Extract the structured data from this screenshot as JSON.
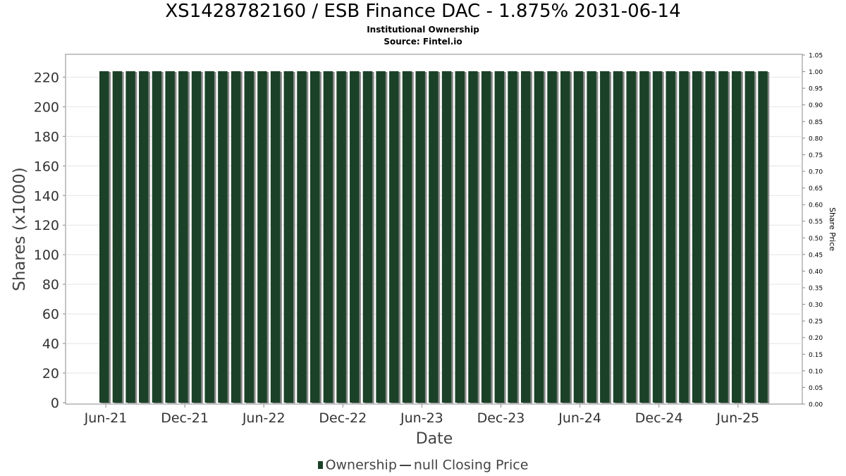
{
  "chart_data": {
    "type": "bar",
    "title": "XS1428782160 / ESB Finance DAC - 1.875% 2031-06-14",
    "subtitle_lines": [
      "Institutional Ownership",
      "Source: Fintel.io"
    ],
    "xlabel": "Date",
    "ylabel": "Shares (x1000)",
    "y2label": "Share Price",
    "ylim": [
      0,
      235
    ],
    "y2lim": [
      0,
      1.05
    ],
    "yticks": [
      0,
      20,
      40,
      60,
      80,
      100,
      120,
      140,
      160,
      180,
      200,
      220
    ],
    "y2ticks": [
      "0.00",
      "0.05",
      "0.10",
      "0.15",
      "0.20",
      "0.25",
      "0.30",
      "0.35",
      "0.40",
      "0.45",
      "0.50",
      "0.55",
      "0.60",
      "0.65",
      "0.70",
      "0.75",
      "0.80",
      "0.85",
      "0.90",
      "0.95",
      "1.00",
      "1.05"
    ],
    "xticks": [
      "Jun-21",
      "Dec-21",
      "Jun-22",
      "Dec-22",
      "Jun-23",
      "Dec-23",
      "Jun-24",
      "Dec-24",
      "Jun-25"
    ],
    "grid": true,
    "legend_position": "bottom",
    "series": [
      {
        "name": "Ownership",
        "color": "#1b4228",
        "bar_count": 51,
        "values": [
          224,
          224,
          224,
          224,
          224,
          224,
          224,
          224,
          224,
          224,
          224,
          224,
          224,
          224,
          224,
          224,
          224,
          224,
          224,
          224,
          224,
          224,
          224,
          224,
          224,
          224,
          224,
          224,
          224,
          224,
          224,
          224,
          224,
          224,
          224,
          224,
          224,
          224,
          224,
          224,
          224,
          224,
          224,
          224,
          224,
          224,
          224,
          224,
          224,
          224,
          224
        ]
      },
      {
        "name": "null Closing Price",
        "color": "#444444",
        "values": []
      }
    ]
  }
}
